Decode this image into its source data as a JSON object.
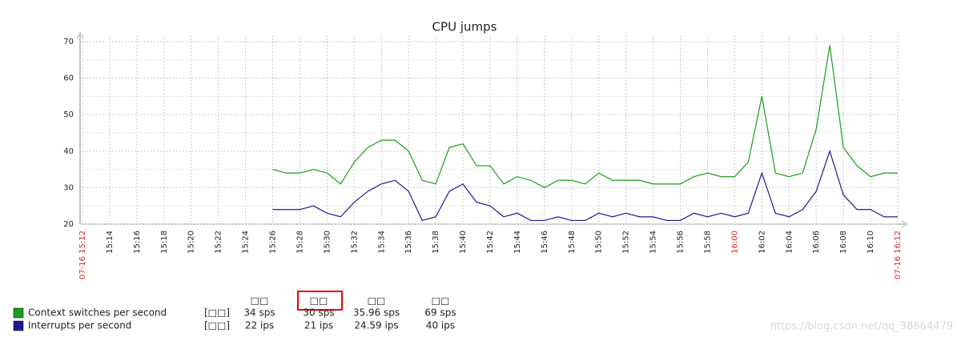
{
  "chart_data": {
    "type": "line",
    "title": "CPU jumps",
    "x": [
      "15:26",
      "15:27",
      "15:28",
      "15:29",
      "15:30",
      "15:31",
      "15:32",
      "15:33",
      "15:34",
      "15:35",
      "15:36",
      "15:37",
      "15:38",
      "15:39",
      "15:40",
      "15:41",
      "15:42",
      "15:43",
      "15:44",
      "15:45",
      "15:46",
      "15:47",
      "15:48",
      "15:49",
      "15:50",
      "15:51",
      "15:52",
      "15:53",
      "15:54",
      "15:55",
      "15:56",
      "15:57",
      "15:58",
      "15:59",
      "16:00",
      "16:01",
      "16:02",
      "16:03",
      "16:04",
      "16:05",
      "16:06",
      "16:07",
      "16:08",
      "16:09",
      "16:10",
      "16:11",
      "16:12"
    ],
    "xlim": [
      "15:12",
      "16:12"
    ],
    "xticks": [
      {
        "value": "15:12",
        "label": "07-16 15:12"
      },
      "15:14",
      "15:16",
      "15:18",
      "15:20",
      "15:22",
      "15:24",
      "15:26",
      "15:28",
      "15:30",
      "15:32",
      "15:34",
      "15:36",
      "15:38",
      "15:40",
      "15:42",
      "15:44",
      "15:46",
      "15:48",
      "15:50",
      "15:52",
      "15:54",
      "15:56",
      "15:58",
      "16:00",
      "16:02",
      "16:04",
      "16:06",
      "16:08",
      "16:10",
      {
        "value": "16:12",
        "label": "07-16 16:12"
      }
    ],
    "ylim": [
      20,
      70
    ],
    "yticks": [
      20,
      30,
      40,
      50,
      60,
      70
    ],
    "grid": true,
    "legend_headers": [
      "□□",
      "□□",
      "□□",
      "□□"
    ],
    "series": [
      {
        "name": "Context switches per second",
        "color": "#1a9c1a",
        "function": "[□□]",
        "values": [
          35,
          34,
          34,
          35,
          34,
          31,
          37,
          41,
          43,
          43,
          40,
          32,
          31,
          41,
          42,
          36,
          36,
          31,
          33,
          32,
          30,
          32,
          32,
          31,
          34,
          32,
          32,
          32,
          31,
          31,
          31,
          33,
          34,
          33,
          33,
          37,
          55,
          34,
          33,
          34,
          46,
          69,
          41,
          36,
          33,
          34,
          34
        ],
        "stats": [
          34,
          30,
          35.96,
          69
        ],
        "stats_labels": [
          "34 sps",
          "30 sps",
          "35.96 sps",
          "69 sps"
        ]
      },
      {
        "name": "Interrupts per second",
        "color": "#1a1a96",
        "function": "[□□]",
        "values": [
          24,
          24,
          24,
          25,
          23,
          22,
          26,
          29,
          31,
          32,
          29,
          21,
          22,
          29,
          31,
          26,
          25,
          22,
          23,
          21,
          21,
          22,
          21,
          21,
          23,
          22,
          23,
          22,
          22,
          21,
          21,
          23,
          22,
          23,
          22,
          23,
          34,
          23,
          22,
          24,
          29,
          40,
          28,
          24,
          24,
          22,
          22
        ],
        "stats": [
          22,
          21,
          24.59,
          40
        ],
        "stats_labels": [
          "22 ips",
          "21 ips",
          "24.59 ips",
          "40 ips"
        ]
      }
    ],
    "watermark": "https://blog.csdn.net/qq_38664479"
  }
}
